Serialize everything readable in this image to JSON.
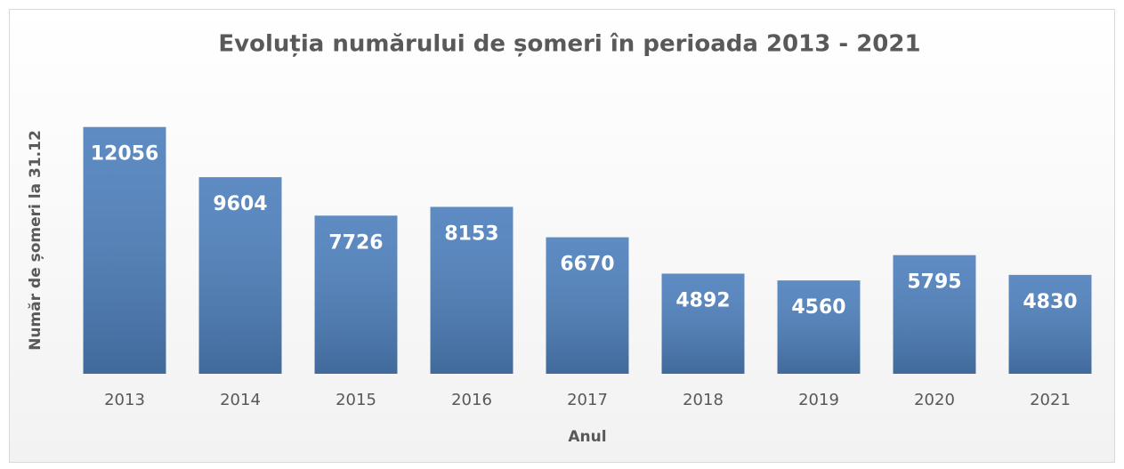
{
  "chart_data": {
    "type": "bar",
    "title": "Evoluția numărului de șomeri în perioada 2013 - 2021",
    "x_label": "Anul",
    "y_label": "Număr de șomeri la 31.12",
    "categories": [
      "2013",
      "2014",
      "2015",
      "2016",
      "2017",
      "2018",
      "2019",
      "2020",
      "2021"
    ],
    "values": [
      12056,
      9604,
      7726,
      8153,
      6670,
      4892,
      4560,
      5795,
      4830
    ],
    "color": "#4f81bd",
    "ylim": [
      0,
      14000
    ]
  }
}
